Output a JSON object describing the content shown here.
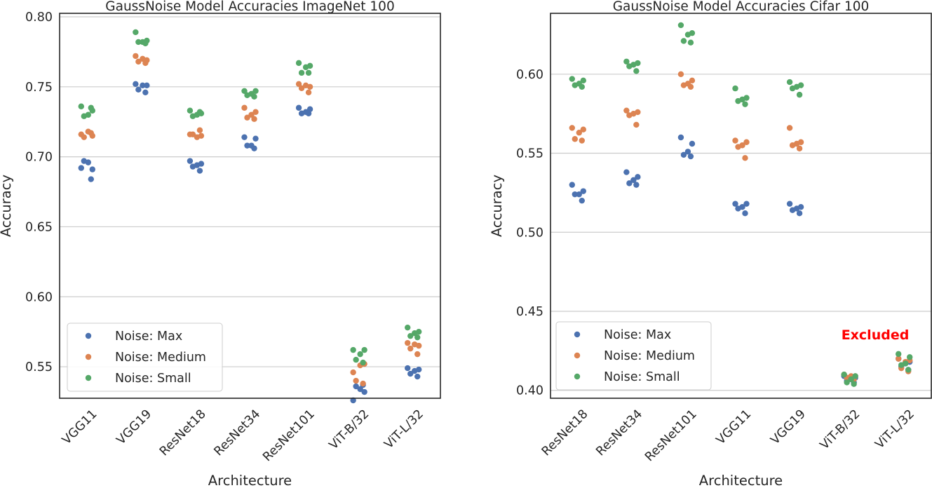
{
  "colors": {
    "max": "#4c72b0",
    "medium": "#dd8452",
    "small": "#55a868",
    "annotation": "#ff0000"
  },
  "legend_entries": [
    "Noise: Max",
    "Noise: Medium",
    "Noise: Small"
  ],
  "chart_data": [
    {
      "type": "scatter",
      "title": "GaussNoise Model Accuracies ImageNet 100",
      "xlabel": "Architecture",
      "ylabel": "Accuracy",
      "ylim": [
        0.5275,
        0.8025
      ],
      "yticks": [
        "0.55",
        "0.60",
        "0.65",
        "0.70",
        "0.75",
        "0.80"
      ],
      "ytick_values": [
        0.55,
        0.6,
        0.65,
        0.7,
        0.75,
        0.8
      ],
      "grid": true,
      "legend": "lower-left",
      "categories": [
        "VGG11",
        "VGG19",
        "ResNet18",
        "ResNet34",
        "ResNet101",
        "ViT-B/32",
        "ViT-L/32"
      ],
      "series": [
        {
          "name": "Noise: Max",
          "color": "#4c72b0",
          "points": [
            [
              "VGG11",
              0.692
            ],
            [
              "VGG11",
              0.691
            ],
            [
              "VGG11",
              0.696
            ],
            [
              "VGG11",
              0.697
            ],
            [
              "VGG11",
              0.684
            ],
            [
              "VGG19",
              0.752
            ],
            [
              "VGG19",
              0.751
            ],
            [
              "VGG19",
              0.751
            ],
            [
              "VGG19",
              0.748
            ],
            [
              "VGG19",
              0.746
            ],
            [
              "ResNet18",
              0.697
            ],
            [
              "ResNet18",
              0.695
            ],
            [
              "ResNet18",
              0.694
            ],
            [
              "ResNet18",
              0.693
            ],
            [
              "ResNet18",
              0.69
            ],
            [
              "ResNet34",
              0.714
            ],
            [
              "ResNet34",
              0.713
            ],
            [
              "ResNet34",
              0.708
            ],
            [
              "ResNet34",
              0.708
            ],
            [
              "ResNet34",
              0.706
            ],
            [
              "ResNet101",
              0.735
            ],
            [
              "ResNet101",
              0.734
            ],
            [
              "ResNet101",
              0.732
            ],
            [
              "ResNet101",
              0.731
            ],
            [
              "ResNet101",
              0.731
            ],
            [
              "ViT-B/32",
              0.526
            ],
            [
              "ViT-B/32",
              0.532
            ],
            [
              "ViT-B/32",
              0.534
            ],
            [
              "ViT-B/32",
              0.536
            ],
            [
              "ViT-B/32",
              0.537
            ],
            [
              "ViT-L/32",
              0.549
            ],
            [
              "ViT-L/32",
              0.548
            ],
            [
              "ViT-L/32",
              0.547
            ],
            [
              "ViT-L/32",
              0.545
            ],
            [
              "ViT-L/32",
              0.543
            ]
          ]
        },
        {
          "name": "Noise: Medium",
          "color": "#dd8452",
          "points": [
            [
              "VGG11",
              0.716
            ],
            [
              "VGG11",
              0.715
            ],
            [
              "VGG11",
              0.718
            ],
            [
              "VGG11",
              0.714
            ],
            [
              "VGG11",
              0.717
            ],
            [
              "VGG19",
              0.772
            ],
            [
              "VGG19",
              0.769
            ],
            [
              "VGG19",
              0.77
            ],
            [
              "VGG19",
              0.768
            ],
            [
              "VGG19",
              0.767
            ],
            [
              "ResNet18",
              0.716
            ],
            [
              "ResNet18",
              0.715
            ],
            [
              "ResNet18",
              0.714
            ],
            [
              "ResNet18",
              0.716
            ],
            [
              "ResNet18",
              0.719
            ],
            [
              "ResNet34",
              0.735
            ],
            [
              "ResNet34",
              0.732
            ],
            [
              "ResNet34",
              0.73
            ],
            [
              "ResNet34",
              0.728
            ],
            [
              "ResNet34",
              0.727
            ],
            [
              "ResNet101",
              0.752
            ],
            [
              "ResNet101",
              0.75
            ],
            [
              "ResNet101",
              0.751
            ],
            [
              "ResNet101",
              0.749
            ],
            [
              "ResNet101",
              0.746
            ],
            [
              "ViT-B/32",
              0.546
            ],
            [
              "ViT-B/32",
              0.552
            ],
            [
              "ViT-B/32",
              0.551
            ],
            [
              "ViT-B/32",
              0.54
            ],
            [
              "ViT-B/32",
              0.538
            ],
            [
              "ViT-L/32",
              0.567
            ],
            [
              "ViT-L/32",
              0.565
            ],
            [
              "ViT-L/32",
              0.566
            ],
            [
              "ViT-L/32",
              0.563
            ],
            [
              "ViT-L/32",
              0.559
            ]
          ]
        },
        {
          "name": "Noise: Small",
          "color": "#55a868",
          "points": [
            [
              "VGG11",
              0.736
            ],
            [
              "VGG11",
              0.733
            ],
            [
              "VGG11",
              0.73
            ],
            [
              "VGG11",
              0.729
            ],
            [
              "VGG11",
              0.735
            ],
            [
              "VGG19",
              0.789
            ],
            [
              "VGG19",
              0.783
            ],
            [
              "VGG19",
              0.782
            ],
            [
              "VGG19",
              0.782
            ],
            [
              "VGG19",
              0.781
            ],
            [
              "ResNet18",
              0.733
            ],
            [
              "ResNet18",
              0.731
            ],
            [
              "ResNet18",
              0.73
            ],
            [
              "ResNet18",
              0.729
            ],
            [
              "ResNet18",
              0.732
            ],
            [
              "ResNet34",
              0.747
            ],
            [
              "ResNet34",
              0.747
            ],
            [
              "ResNet34",
              0.745
            ],
            [
              "ResNet34",
              0.744
            ],
            [
              "ResNet34",
              0.743
            ],
            [
              "ResNet101",
              0.767
            ],
            [
              "ResNet101",
              0.765
            ],
            [
              "ResNet101",
              0.764
            ],
            [
              "ResNet101",
              0.76
            ],
            [
              "ResNet101",
              0.76
            ],
            [
              "ViT-B/32",
              0.562
            ],
            [
              "ViT-B/32",
              0.562
            ],
            [
              "ViT-B/32",
              0.559
            ],
            [
              "ViT-B/32",
              0.555
            ],
            [
              "ViT-B/32",
              0.553
            ],
            [
              "ViT-L/32",
              0.578
            ],
            [
              "ViT-L/32",
              0.575
            ],
            [
              "ViT-L/32",
              0.574
            ],
            [
              "ViT-L/32",
              0.572
            ],
            [
              "ViT-L/32",
              0.571
            ]
          ]
        }
      ]
    },
    {
      "type": "scatter",
      "title": "GaussNoise Model Accuracies Cifar 100",
      "xlabel": "Architecture",
      "ylabel": "Accuracy",
      "ylim": [
        0.395,
        0.6385
      ],
      "yticks": [
        "0.40",
        "0.45",
        "0.50",
        "0.55",
        "0.60"
      ],
      "ytick_values": [
        0.4,
        0.45,
        0.5,
        0.55,
        0.6
      ],
      "grid": true,
      "legend": "lower-left",
      "categories": [
        "ResNet18",
        "ResNet34",
        "ResNet101",
        "VGG11",
        "VGG19",
        "ViT-B/32",
        "ViT-L/32"
      ],
      "annotation": "Excluded",
      "series": [
        {
          "name": "Noise: Max",
          "color": "#4c72b0",
          "points": [
            [
              "ResNet18",
              0.53
            ],
            [
              "ResNet18",
              0.526
            ],
            [
              "ResNet18",
              0.524
            ],
            [
              "ResNet18",
              0.524
            ],
            [
              "ResNet18",
              0.52
            ],
            [
              "ResNet34",
              0.538
            ],
            [
              "ResNet34",
              0.535
            ],
            [
              "ResNet34",
              0.533
            ],
            [
              "ResNet34",
              0.531
            ],
            [
              "ResNet34",
              0.53
            ],
            [
              "ResNet101",
              0.56
            ],
            [
              "ResNet101",
              0.556
            ],
            [
              "ResNet101",
              0.551
            ],
            [
              "ResNet101",
              0.549
            ],
            [
              "ResNet101",
              0.548
            ],
            [
              "VGG11",
              0.518
            ],
            [
              "VGG11",
              0.518
            ],
            [
              "VGG11",
              0.516
            ],
            [
              "VGG11",
              0.515
            ],
            [
              "VGG11",
              0.512
            ],
            [
              "VGG19",
              0.518
            ],
            [
              "VGG19",
              0.516
            ],
            [
              "VGG19",
              0.515
            ],
            [
              "VGG19",
              0.514
            ],
            [
              "VGG19",
              0.512
            ],
            [
              "ViT-B/32",
              0.409
            ],
            [
              "ViT-B/32",
              0.408
            ],
            [
              "ViT-B/32",
              0.407
            ],
            [
              "ViT-B/32",
              0.406
            ],
            [
              "ViT-B/32",
              0.405
            ],
            [
              "ViT-L/32",
              0.42
            ],
            [
              "ViT-L/32",
              0.418
            ],
            [
              "ViT-L/32",
              0.417
            ],
            [
              "ViT-L/32",
              0.415
            ],
            [
              "ViT-L/32",
              0.413
            ]
          ]
        },
        {
          "name": "Noise: Medium",
          "color": "#dd8452",
          "points": [
            [
              "ResNet18",
              0.566
            ],
            [
              "ResNet18",
              0.565
            ],
            [
              "ResNet18",
              0.563
            ],
            [
              "ResNet18",
              0.559
            ],
            [
              "ResNet18",
              0.558
            ],
            [
              "ResNet34",
              0.577
            ],
            [
              "ResNet34",
              0.576
            ],
            [
              "ResNet34",
              0.575
            ],
            [
              "ResNet34",
              0.574
            ],
            [
              "ResNet34",
              0.568
            ],
            [
              "ResNet101",
              0.6
            ],
            [
              "ResNet101",
              0.596
            ],
            [
              "ResNet101",
              0.594
            ],
            [
              "ResNet101",
              0.593
            ],
            [
              "ResNet101",
              0.592
            ],
            [
              "VGG11",
              0.558
            ],
            [
              "VGG11",
              0.557
            ],
            [
              "VGG11",
              0.555
            ],
            [
              "VGG11",
              0.554
            ],
            [
              "VGG11",
              0.547
            ],
            [
              "VGG19",
              0.566
            ],
            [
              "VGG19",
              0.557
            ],
            [
              "VGG19",
              0.556
            ],
            [
              "VGG19",
              0.555
            ],
            [
              "VGG19",
              0.553
            ],
            [
              "ViT-B/32",
              0.41
            ],
            [
              "ViT-B/32",
              0.409
            ],
            [
              "ViT-B/32",
              0.409
            ],
            [
              "ViT-B/32",
              0.408
            ],
            [
              "ViT-B/32",
              0.407
            ],
            [
              "ViT-L/32",
              0.42
            ],
            [
              "ViT-L/32",
              0.419
            ],
            [
              "ViT-L/32",
              0.418
            ],
            [
              "ViT-L/32",
              0.414
            ],
            [
              "ViT-L/32",
              0.412
            ]
          ]
        },
        {
          "name": "Noise: Small",
          "color": "#55a868",
          "points": [
            [
              "ResNet18",
              0.597
            ],
            [
              "ResNet18",
              0.596
            ],
            [
              "ResNet18",
              0.594
            ],
            [
              "ResNet18",
              0.593
            ],
            [
              "ResNet18",
              0.592
            ],
            [
              "ResNet34",
              0.608
            ],
            [
              "ResNet34",
              0.607
            ],
            [
              "ResNet34",
              0.606
            ],
            [
              "ResNet34",
              0.605
            ],
            [
              "ResNet34",
              0.602
            ],
            [
              "ResNet101",
              0.631
            ],
            [
              "ResNet101",
              0.626
            ],
            [
              "ResNet101",
              0.625
            ],
            [
              "ResNet101",
              0.621
            ],
            [
              "ResNet101",
              0.62
            ],
            [
              "VGG11",
              0.591
            ],
            [
              "VGG11",
              0.585
            ],
            [
              "VGG11",
              0.584
            ],
            [
              "VGG11",
              0.583
            ],
            [
              "VGG11",
              0.581
            ],
            [
              "VGG19",
              0.595
            ],
            [
              "VGG19",
              0.593
            ],
            [
              "VGG19",
              0.592
            ],
            [
              "VGG19",
              0.591
            ],
            [
              "VGG19",
              0.587
            ],
            [
              "ViT-B/32",
              0.41
            ],
            [
              "ViT-B/32",
              0.409
            ],
            [
              "ViT-B/32",
              0.407
            ],
            [
              "ViT-B/32",
              0.405
            ],
            [
              "ViT-B/32",
              0.404
            ],
            [
              "ViT-L/32",
              0.423
            ],
            [
              "ViT-L/32",
              0.421
            ],
            [
              "ViT-L/32",
              0.417
            ],
            [
              "ViT-L/32",
              0.416
            ],
            [
              "ViT-L/32",
              0.413
            ]
          ]
        }
      ]
    }
  ]
}
